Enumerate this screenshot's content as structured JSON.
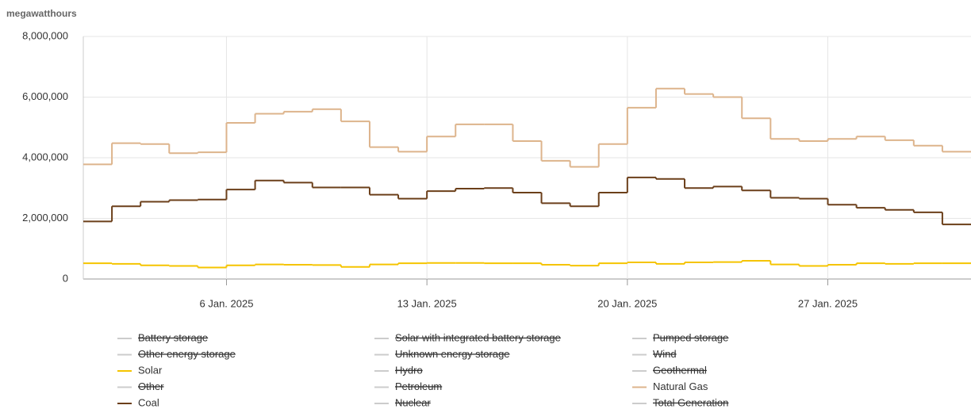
{
  "chart_data": {
    "type": "line",
    "step": true,
    "y_label": "megawatthours",
    "x": [
      "2025-01-01",
      "2025-01-02",
      "2025-01-03",
      "2025-01-04",
      "2025-01-05",
      "2025-01-06",
      "2025-01-07",
      "2025-01-08",
      "2025-01-09",
      "2025-01-10",
      "2025-01-11",
      "2025-01-12",
      "2025-01-13",
      "2025-01-14",
      "2025-01-15",
      "2025-01-16",
      "2025-01-17",
      "2025-01-18",
      "2025-01-19",
      "2025-01-20",
      "2025-01-21",
      "2025-01-22",
      "2025-01-23",
      "2025-01-24",
      "2025-01-25",
      "2025-01-26",
      "2025-01-27",
      "2025-01-28",
      "2025-01-29",
      "2025-01-30",
      "2025-01-31"
    ],
    "xlim": [
      "2025-01-01",
      "2025-02-01"
    ],
    "xticks": [
      {
        "value": "2025-01-06",
        "label": "6 Jan. 2025"
      },
      {
        "value": "2025-01-13",
        "label": "13 Jan. 2025"
      },
      {
        "value": "2025-01-20",
        "label": "20 Jan. 2025"
      },
      {
        "value": "2025-01-27",
        "label": "27 Jan. 2025"
      }
    ],
    "ylim": [
      0,
      8000000
    ],
    "yticks": [
      0,
      {
        "value": 2000000,
        "label": "2,000,000"
      },
      {
        "value": 4000000,
        "label": "4,000,000"
      },
      {
        "value": 6000000,
        "label": "6,000,000"
      },
      {
        "value": 8000000,
        "label": "8,000,000"
      }
    ],
    "grid": true,
    "series": [
      {
        "name": "Battery storage",
        "visible": false
      },
      {
        "name": "Solar with integrated battery storage",
        "visible": false
      },
      {
        "name": "Pumped storage",
        "visible": false
      },
      {
        "name": "Other energy storage",
        "visible": false
      },
      {
        "name": "Unknown energy storage",
        "visible": false
      },
      {
        "name": "Wind",
        "visible": false
      },
      {
        "name": "Solar",
        "visible": true,
        "color": "#f5c400",
        "values": [
          520000,
          500000,
          450000,
          430000,
          380000,
          450000,
          480000,
          470000,
          460000,
          400000,
          480000,
          520000,
          530000,
          530000,
          520000,
          520000,
          470000,
          440000,
          520000,
          550000,
          500000,
          550000,
          560000,
          600000,
          480000,
          430000,
          470000,
          520000,
          500000,
          520000,
          520000
        ]
      },
      {
        "name": "Hydro",
        "visible": false
      },
      {
        "name": "Geothermal",
        "visible": false
      },
      {
        "name": "Other",
        "visible": false
      },
      {
        "name": "Petroleum",
        "visible": false
      },
      {
        "name": "Natural Gas",
        "visible": true,
        "color": "#ddb48c",
        "values": [
          3780000,
          4480000,
          4450000,
          4150000,
          4180000,
          5150000,
          5450000,
          5520000,
          5600000,
          5200000,
          4350000,
          4200000,
          4700000,
          5100000,
          5100000,
          4550000,
          3900000,
          3700000,
          4450000,
          5650000,
          6280000,
          6100000,
          6000000,
          5300000,
          4620000,
          4550000,
          4620000,
          4700000,
          4580000,
          4400000,
          4200000
        ]
      },
      {
        "name": "Coal",
        "visible": true,
        "color": "#6b3f1a",
        "values": [
          1900000,
          2400000,
          2550000,
          2600000,
          2620000,
          2950000,
          3250000,
          3180000,
          3020000,
          3020000,
          2780000,
          2650000,
          2900000,
          2980000,
          3000000,
          2850000,
          2500000,
          2400000,
          2850000,
          3350000,
          3300000,
          3000000,
          3050000,
          2920000,
          2680000,
          2650000,
          2450000,
          2350000,
          2280000,
          2200000,
          1800000
        ]
      },
      {
        "name": "Nuclear",
        "visible": false
      },
      {
        "name": "Total Generation",
        "visible": false
      }
    ]
  }
}
